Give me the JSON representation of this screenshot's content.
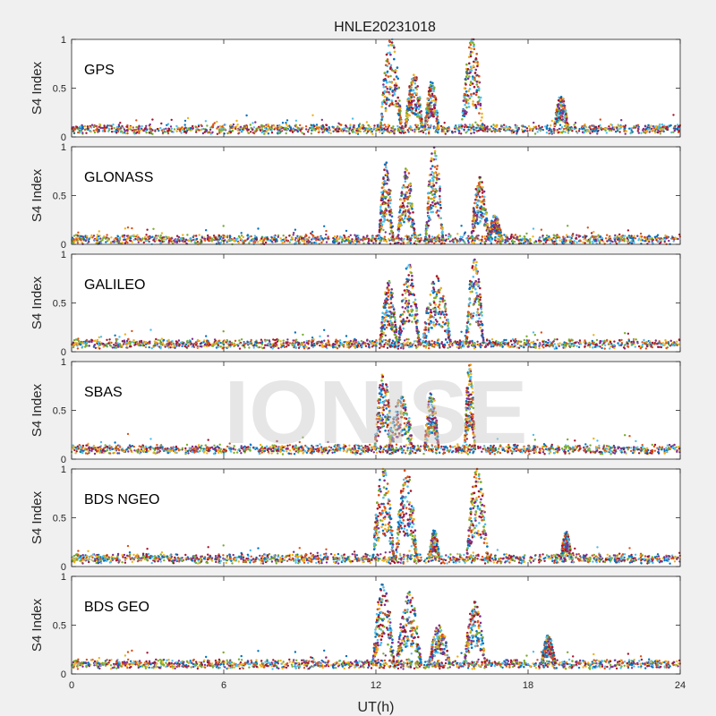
{
  "chart_data": {
    "type": "scatter",
    "title": "HNLE20231018",
    "xlabel": "UT(h)",
    "xlim": [
      0,
      24
    ],
    "x_ticks": [
      "0",
      "6",
      "12",
      "18",
      "24"
    ],
    "watermark": "IONISE",
    "colors": [
      "#0072bd",
      "#d95319",
      "#edb120",
      "#7e2f8e",
      "#77ac30",
      "#4dbeee",
      "#a2142f"
    ],
    "panels": [
      {
        "label": "GPS",
        "ylabel": "S4 Index",
        "ylim": [
          0,
          1
        ],
        "y_ticks": [
          "0",
          "0.5",
          "1"
        ],
        "baseline": 0.08,
        "events": [
          {
            "center": 12.6,
            "width": 0.6,
            "peak": 0.95
          },
          {
            "center": 13.5,
            "width": 0.5,
            "peak": 0.6
          },
          {
            "center": 14.2,
            "width": 0.4,
            "peak": 0.5
          },
          {
            "center": 15.8,
            "width": 0.6,
            "peak": 0.95
          },
          {
            "center": 19.3,
            "width": 0.4,
            "peak": 0.35
          }
        ]
      },
      {
        "label": "GLONASS",
        "ylabel": "S4 Index",
        "ylim": [
          0,
          1
        ],
        "y_ticks": [
          "0",
          "0.5",
          "1"
        ],
        "baseline": 0.05,
        "events": [
          {
            "center": 12.4,
            "width": 0.4,
            "peak": 0.8
          },
          {
            "center": 13.2,
            "width": 0.5,
            "peak": 0.75
          },
          {
            "center": 14.3,
            "width": 0.5,
            "peak": 0.95
          },
          {
            "center": 16.1,
            "width": 0.5,
            "peak": 0.65
          },
          {
            "center": 16.7,
            "width": 0.4,
            "peak": 0.25
          }
        ]
      },
      {
        "label": "GALILEO",
        "ylabel": "S4 Index",
        "ylim": [
          0,
          1
        ],
        "y_ticks": [
          "0",
          "0.5",
          "1"
        ],
        "baseline": 0.08,
        "events": [
          {
            "center": 12.5,
            "width": 0.5,
            "peak": 0.65
          },
          {
            "center": 13.3,
            "width": 0.6,
            "peak": 0.85
          },
          {
            "center": 14.4,
            "width": 0.8,
            "peak": 0.7
          },
          {
            "center": 15.9,
            "width": 0.5,
            "peak": 0.9
          }
        ]
      },
      {
        "label": "SBAS",
        "ylabel": "S4 Index",
        "ylim": [
          0,
          1
        ],
        "y_ticks": [
          "0",
          "0.5",
          "1"
        ],
        "baseline": 0.1,
        "events": [
          {
            "center": 12.3,
            "width": 0.5,
            "peak": 0.8
          },
          {
            "center": 13.0,
            "width": 0.7,
            "peak": 0.55
          },
          {
            "center": 14.2,
            "width": 0.4,
            "peak": 0.6
          },
          {
            "center": 15.7,
            "width": 0.3,
            "peak": 0.9
          }
        ]
      },
      {
        "label": "BDS NGEO",
        "ylabel": "S4 Index",
        "ylim": [
          0,
          1
        ],
        "y_ticks": [
          "0",
          "0.5",
          "1"
        ],
        "baseline": 0.08,
        "events": [
          {
            "center": 12.3,
            "width": 0.6,
            "peak": 0.95
          },
          {
            "center": 13.2,
            "width": 0.6,
            "peak": 0.95
          },
          {
            "center": 14.3,
            "width": 0.3,
            "peak": 0.3
          },
          {
            "center": 16.0,
            "width": 0.6,
            "peak": 0.95
          },
          {
            "center": 19.5,
            "width": 0.3,
            "peak": 0.28
          }
        ]
      },
      {
        "label": "BDS GEO",
        "ylabel": "S4 Index",
        "ylim": [
          0,
          1
        ],
        "y_ticks": [
          "0",
          "0.5",
          "1"
        ],
        "baseline": 0.1,
        "events": [
          {
            "center": 12.3,
            "width": 0.6,
            "peak": 0.85
          },
          {
            "center": 13.3,
            "width": 0.7,
            "peak": 0.75
          },
          {
            "center": 14.5,
            "width": 0.6,
            "peak": 0.4
          },
          {
            "center": 15.9,
            "width": 0.6,
            "peak": 0.65
          },
          {
            "center": 18.8,
            "width": 0.4,
            "peak": 0.3
          }
        ]
      }
    ]
  }
}
